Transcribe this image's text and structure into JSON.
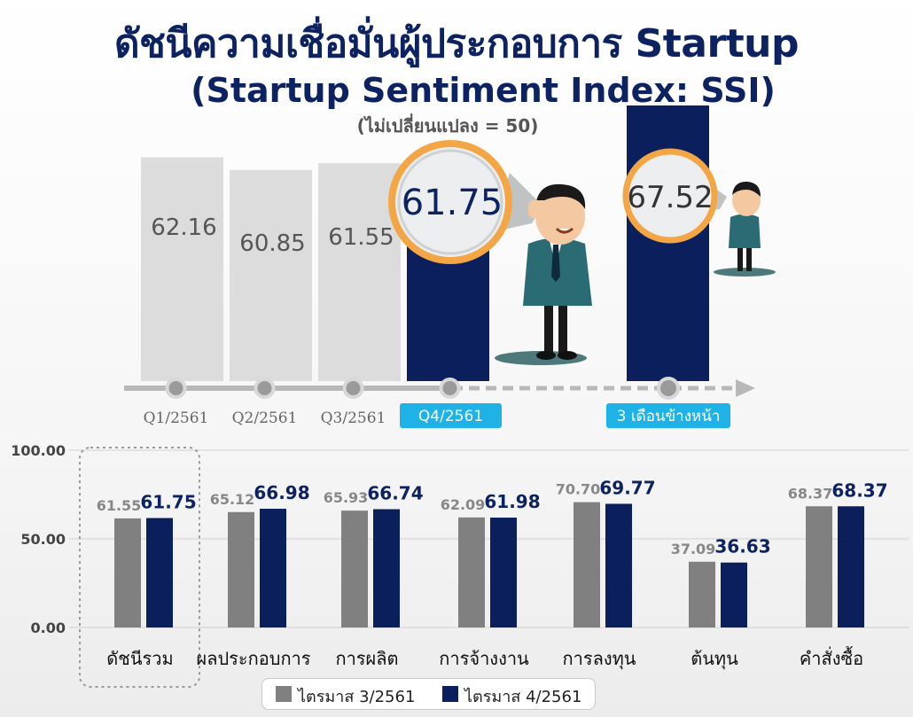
{
  "title": "ดัชนีความเชื่อมั่นผู้ประกอบการ Startup",
  "subtitle": "(Startup Sentiment Index: SSI)",
  "note": "(ไม่เปลี่ยนแปลง = 50)",
  "colors": {
    "navy": "#0a1f5c",
    "gray": "#808080",
    "lightgray": "#dcdcdc",
    "cyan": "#1fb2e6",
    "titleNavy": "#0d2260"
  },
  "chart_data": [
    {
      "type": "bar",
      "categories": [
        "Q1/2561",
        "Q2/2561",
        "Q3/2561",
        "Q4/2561",
        "3 เดือนข้างหน้า"
      ],
      "values": [
        62.16,
        60.85,
        61.55,
        61.75,
        67.52
      ],
      "value_labels": [
        "62.16",
        "60.85",
        "61.55",
        "61.75",
        "67.52"
      ],
      "highlighted": [
        "Q4/2561",
        "3 เดือนข้างหน้า"
      ]
    },
    {
      "type": "bar",
      "categories": [
        "ดัชนีรวม",
        "ผลประกอบการ",
        "การผลิต",
        "การจ้างงาน",
        "การลงทุน",
        "ต้นทุน",
        "คำสั่งซื้อ"
      ],
      "series": [
        {
          "name": "ไตรมาส 3/2561",
          "values": [
            61.55,
            65.12,
            65.93,
            62.09,
            70.7,
            37.09,
            68.37
          ],
          "labels": [
            "61.55",
            "65.12",
            "65.93",
            "62.09",
            "70.70",
            "37.09",
            "68.37"
          ]
        },
        {
          "name": "ไตรมาส 4/2561",
          "values": [
            61.75,
            66.98,
            66.74,
            61.98,
            69.77,
            36.63,
            68.37
          ],
          "labels": [
            "61.75",
            "66.98",
            "66.74",
            "61.98",
            "69.77",
            "36.63",
            "68.37"
          ]
        }
      ],
      "ylim": [
        0,
        100
      ],
      "yticks": [
        "0.00",
        "50.00",
        "100.00"
      ],
      "grid": true,
      "legend": "bottom"
    }
  ]
}
